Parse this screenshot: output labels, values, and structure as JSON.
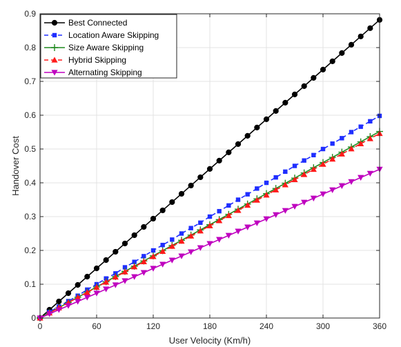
{
  "chart_data": {
    "type": "line",
    "xlabel": "User Velocity (Km/h)",
    "ylabel": "Handover Cost",
    "xlim": [
      0,
      360
    ],
    "ylim": [
      0,
      0.9
    ],
    "xticks": [
      0,
      60,
      120,
      180,
      240,
      300,
      360
    ],
    "yticks": [
      0,
      0.1,
      0.2,
      0.3,
      0.4,
      0.5,
      0.6,
      0.7,
      0.8,
      0.9
    ],
    "xtick_labels": [
      "0",
      "60",
      "120",
      "180",
      "240",
      "300",
      "360"
    ],
    "ytick_labels": [
      "0",
      "0.1",
      "0.2",
      "0.3",
      "0.4",
      "0.5",
      "0.6",
      "0.7",
      "0.8",
      "0.9"
    ],
    "grid": true,
    "legend_position": "top-left",
    "x": [
      0,
      10,
      20,
      30,
      40,
      50,
      60,
      70,
      80,
      90,
      100,
      110,
      120,
      130,
      140,
      150,
      160,
      170,
      180,
      190,
      200,
      210,
      220,
      230,
      240,
      250,
      260,
      270,
      280,
      290,
      300,
      310,
      320,
      330,
      340,
      350,
      360
    ],
    "series": [
      {
        "name": "Best Connected",
        "color": "#000000",
        "marker": "circle",
        "dash": "solid",
        "values": [
          0.0,
          0.0245,
          0.049,
          0.0735,
          0.098,
          0.1225,
          0.147,
          0.1715,
          0.196,
          0.2205,
          0.245,
          0.2695,
          0.294,
          0.3185,
          0.343,
          0.3675,
          0.392,
          0.4165,
          0.441,
          0.4655,
          0.49,
          0.5145,
          0.539,
          0.5635,
          0.588,
          0.6125,
          0.637,
          0.6615,
          0.686,
          0.7105,
          0.735,
          0.7595,
          0.784,
          0.8085,
          0.833,
          0.8575,
          0.882
        ]
      },
      {
        "name": "Location Aware Skipping",
        "color": "#1f2eff",
        "marker": "square",
        "dash": "dashed",
        "values": [
          0.0,
          0.018,
          0.034,
          0.05,
          0.066,
          0.084,
          0.1,
          0.117,
          0.132,
          0.15,
          0.166,
          0.183,
          0.2,
          0.216,
          0.232,
          0.25,
          0.266,
          0.282,
          0.3,
          0.316,
          0.333,
          0.35,
          0.366,
          0.383,
          0.4,
          0.416,
          0.433,
          0.45,
          0.466,
          0.482,
          0.5,
          0.516,
          0.532,
          0.55,
          0.566,
          0.582,
          0.598
        ]
      },
      {
        "name": "Size Aware Skipping",
        "color": "#1e8a1e",
        "marker": "plus",
        "dash": "solid",
        "values": [
          0.0,
          0.0153,
          0.0307,
          0.046,
          0.0613,
          0.0767,
          0.092,
          0.1073,
          0.1227,
          0.138,
          0.1533,
          0.1687,
          0.184,
          0.1993,
          0.2147,
          0.23,
          0.2453,
          0.2607,
          0.276,
          0.2913,
          0.3067,
          0.322,
          0.3373,
          0.3527,
          0.368,
          0.3833,
          0.3987,
          0.414,
          0.4293,
          0.4447,
          0.46,
          0.4753,
          0.4907,
          0.506,
          0.5213,
          0.5367,
          0.552
        ]
      },
      {
        "name": "Hybrid Skipping",
        "color": "#ff1a1a",
        "marker": "triangle-up",
        "dash": "dashed",
        "values": [
          0.0,
          0.0152,
          0.0303,
          0.0455,
          0.0607,
          0.0758,
          0.091,
          0.1062,
          0.1213,
          0.1365,
          0.1517,
          0.1668,
          0.182,
          0.1972,
          0.2123,
          0.2275,
          0.2427,
          0.2578,
          0.273,
          0.2882,
          0.3033,
          0.3185,
          0.3337,
          0.3488,
          0.364,
          0.3792,
          0.3943,
          0.4095,
          0.4247,
          0.4398,
          0.455,
          0.4702,
          0.4853,
          0.5005,
          0.5157,
          0.5308,
          0.546
        ]
      },
      {
        "name": "Alternating Skipping",
        "color": "#bf00bf",
        "marker": "triangle-down",
        "dash": "solid",
        "values": [
          0.0,
          0.0122,
          0.0244,
          0.0367,
          0.0489,
          0.0611,
          0.0733,
          0.0856,
          0.0978,
          0.11,
          0.1222,
          0.1344,
          0.1467,
          0.1589,
          0.1711,
          0.1833,
          0.1956,
          0.2078,
          0.22,
          0.2322,
          0.2444,
          0.2567,
          0.2689,
          0.2811,
          0.2933,
          0.3056,
          0.3178,
          0.33,
          0.3422,
          0.3544,
          0.3667,
          0.3789,
          0.3911,
          0.4033,
          0.4156,
          0.4278,
          0.44
        ]
      }
    ]
  }
}
